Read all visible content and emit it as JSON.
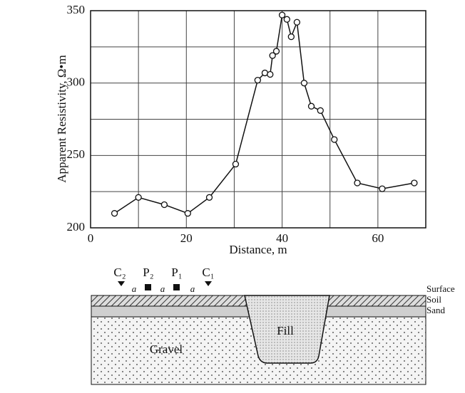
{
  "chart_data": {
    "type": "line",
    "x_label": "Distance, m",
    "y_label": "Apparent Resistivity, Ω•m",
    "x": [
      5,
      10,
      15.4,
      20.3,
      24.8,
      30.3,
      34.9,
      36.4,
      37.5,
      38,
      38.8,
      40,
      41,
      41.9,
      43.1,
      44.6,
      46.1,
      48,
      50.9,
      55.7,
      60.9,
      67.6
    ],
    "series": [
      {
        "color": "#111111",
        "values": [
          210,
          221,
          216,
          210,
          221,
          244,
          302,
          307,
          306,
          319,
          322,
          347,
          344,
          332,
          342,
          300,
          284,
          281,
          261,
          231,
          227,
          231
        ]
      }
    ],
    "xlim": [
      0,
      70
    ],
    "ylim": [
      200,
      350
    ],
    "xticks": [
      0,
      20,
      40,
      60
    ],
    "yticks": [
      200,
      250,
      300,
      350
    ],
    "minor_xticks": [
      10,
      30,
      50,
      70
    ],
    "minor_yticks": [
      225,
      275,
      325
    ],
    "grid": true
  },
  "diagram": {
    "electrodes": [
      "C₂",
      "P₂",
      "P₁",
      "C₁"
    ],
    "spacing": [
      "a",
      "a",
      "a"
    ],
    "layers": [
      "Surface",
      "Soil",
      "Sand"
    ],
    "fill": "Fill",
    "gravel": "Gravel"
  }
}
